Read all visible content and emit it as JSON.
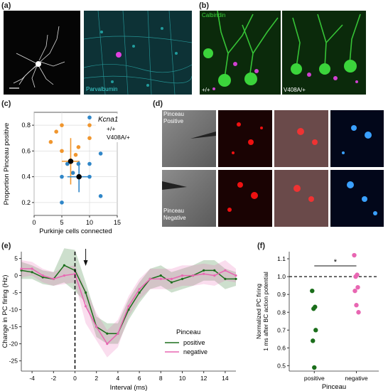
{
  "panels": {
    "a": {
      "label": "(a)",
      "image_label": "Parvalbumin"
    },
    "b": {
      "label": "(b)",
      "image_label_top": "Calbindin",
      "image_label_left": "+/+",
      "image_label_right": "V408A/+"
    },
    "c": {
      "label": "(c)"
    },
    "d": {
      "label": "(d)",
      "row1_label_a": "Pinceau",
      "row1_label_b": "Positive",
      "row2_label_a": "Pinceau",
      "row2_label_b": "Negative"
    },
    "e": {
      "label": "(e)"
    },
    "f": {
      "label": "(f)"
    }
  },
  "colors": {
    "orange": "#f0962e",
    "blue": "#2f86c8",
    "green": "#1b6e1b",
    "pink": "#e866b2"
  },
  "chart_data": [
    {
      "id": "c",
      "type": "scatter",
      "xlabel": "Purkinje cells connected",
      "ylabel": "Proportion Pinceau positive",
      "xlim": [
        0,
        15
      ],
      "ylim": [
        0.1,
        0.9
      ],
      "xticks": [
        "0",
        "5",
        "10",
        "15"
      ],
      "yticks": [
        "0.2",
        "0.4",
        "0.6",
        "0.8"
      ],
      "legend": {
        "title": "Kcna1",
        "entries": [
          "+/+",
          "V408A/+"
        ],
        "placement": "top-right"
      },
      "series": [
        {
          "name": "+/+",
          "color": "#f0962e",
          "points": [
            [
              3,
              0.67
            ],
            [
              4,
              0.75
            ],
            [
              5,
              0.8
            ],
            [
              5,
              0.6
            ],
            [
              6,
              0.5
            ],
            [
              7,
              0.43
            ],
            [
              7.5,
              0.57
            ],
            [
              8,
              0.5
            ],
            [
              8,
              0.63
            ],
            [
              10,
              0.8
            ],
            [
              10,
              0.7
            ]
          ],
          "mean": [
            6.6,
            0.52
          ],
          "x_err": 1.6,
          "y_err": 0.18
        },
        {
          "name": "V408A/+",
          "color": "#2f86c8",
          "points": [
            [
              5,
              0.2
            ],
            [
              5,
              0.4
            ],
            [
              6,
              0.5
            ],
            [
              7,
              0.43
            ],
            [
              8,
              0.5
            ],
            [
              10,
              0.4
            ],
            [
              10,
              0.5
            ],
            [
              10,
              0.86
            ],
            [
              12,
              0.58
            ],
            [
              12,
              0.25
            ]
          ],
          "mean": [
            8.1,
            0.4
          ],
          "x_err": 2.1,
          "y_err": 0.12
        }
      ]
    },
    {
      "id": "e",
      "type": "line",
      "xlabel": "Interval (ms)",
      "ylabel": "Change in PC firing (Hz)",
      "xlim": [
        -5,
        15
      ],
      "ylim": [
        -28,
        7
      ],
      "xticks": [
        "-4",
        "-2",
        "0",
        "2",
        "4",
        "6",
        "8",
        "10",
        "12",
        "14"
      ],
      "yticks": [
        "5",
        "0",
        "-5",
        "-10",
        "-15",
        "-20",
        "-25"
      ],
      "legend": {
        "title": "Pinceau",
        "entries": [
          "positive",
          "negative"
        ],
        "placement": "lower-right"
      },
      "series": [
        {
          "name": "positive",
          "color": "#1b6e1b",
          "x": [
            -5,
            -4,
            -3,
            -2,
            -1,
            0,
            1,
            2,
            3,
            4,
            5,
            6,
            7,
            8,
            9,
            10,
            11,
            12,
            13,
            14,
            15
          ],
          "y": [
            1.5,
            1,
            -0.5,
            -1,
            3,
            1.5,
            -5,
            -15,
            -17,
            -17,
            -10,
            -5,
            -1,
            0,
            -2,
            -1,
            0,
            1.5,
            1.5,
            -1,
            -1
          ],
          "band": [
            2.5,
            2,
            2,
            2,
            5,
            6,
            3,
            3,
            3,
            3,
            3,
            3,
            3,
            3,
            3,
            3,
            3,
            3,
            3,
            3,
            2
          ]
        },
        {
          "name": "negative",
          "color": "#e866b2",
          "x": [
            -5,
            -4,
            -3,
            -2,
            -1,
            0,
            1,
            2,
            3,
            4,
            5,
            6,
            7,
            8,
            9,
            10,
            11,
            12,
            13,
            14,
            15
          ],
          "y": [
            2,
            2,
            0,
            -1,
            0,
            0.5,
            -9,
            -15,
            -20,
            -17,
            -9,
            -4,
            -1,
            -1,
            -1,
            0,
            0,
            0.5,
            0,
            1.5,
            0
          ],
          "band": [
            2.5,
            2,
            2,
            2,
            2.5,
            2.5,
            5,
            4,
            4,
            4,
            3,
            3,
            3,
            3,
            3,
            3,
            3,
            3,
            3,
            3,
            2
          ]
        }
      ]
    },
    {
      "id": "f",
      "type": "scatter",
      "xlabel": "Pinceau",
      "ylabel": "Normalized PC firing 1 ms after BC action potential",
      "ylabel_lines": [
        "Normalized PC firing",
        "1 ms after BC action potential"
      ],
      "ylim": [
        0.47,
        1.14
      ],
      "yticks": [
        "0.5",
        "0.6",
        "0.7",
        "0.8",
        "0.9",
        "1.0",
        "1.1"
      ],
      "categories": [
        "positive",
        "negative"
      ],
      "reference_line": 1.0,
      "significance": "*",
      "series": [
        {
          "name": "positive",
          "color": "#1b6e1b",
          "values": [
            0.92,
            0.83,
            0.82,
            0.7,
            0.64,
            0.49
          ]
        },
        {
          "name": "negative",
          "color": "#e866b2",
          "values": [
            1.12,
            1.01,
            1.0,
            0.94,
            0.92,
            0.84,
            0.8
          ]
        }
      ]
    }
  ]
}
